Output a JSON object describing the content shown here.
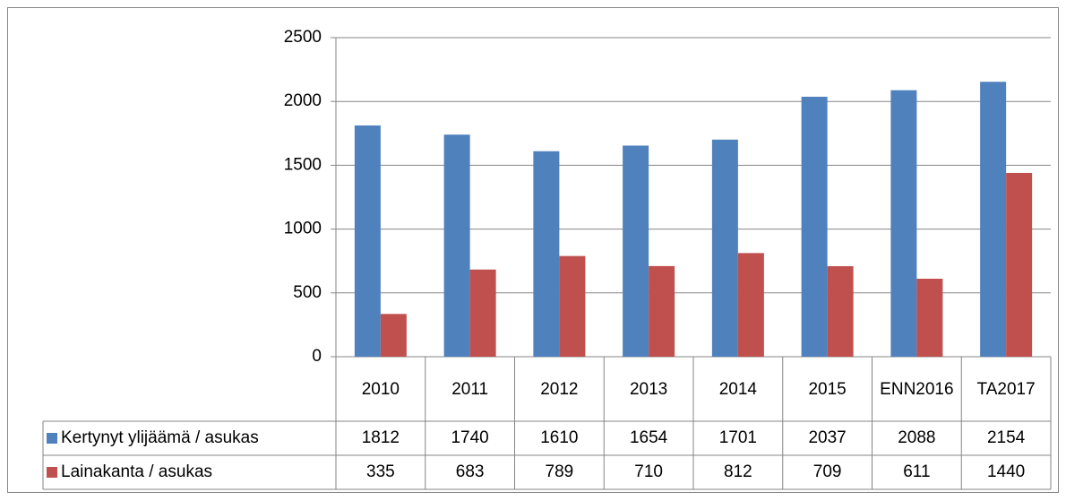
{
  "chart_data": {
    "type": "bar",
    "categories": [
      "2010",
      "2011",
      "2012",
      "2013",
      "2014",
      "2015",
      "ENN2016",
      "TA2017"
    ],
    "series": [
      {
        "name": "Kertynyt ylijäämä / asukas",
        "color": "#4f81bd",
        "values": [
          1812,
          1740,
          1610,
          1654,
          1701,
          2037,
          2088,
          2154
        ]
      },
      {
        "name": "Lainakanta / asukas",
        "color": "#c0504d",
        "values": [
          335,
          683,
          789,
          710,
          812,
          709,
          611,
          1440
        ]
      }
    ],
    "ylim": [
      0,
      2500
    ],
    "yticks": [
      0,
      500,
      1000,
      1500,
      2000,
      2500
    ],
    "grid": true,
    "data_table": true
  }
}
